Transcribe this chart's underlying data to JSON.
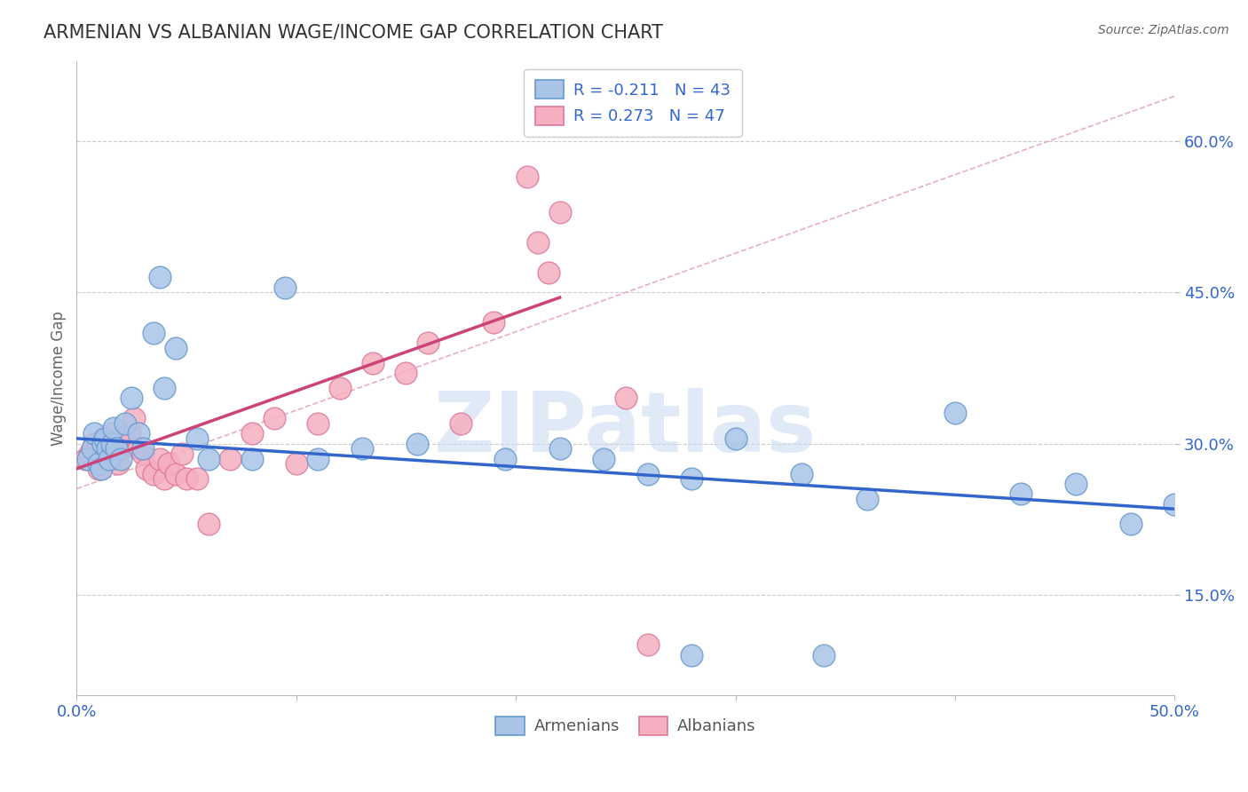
{
  "title": "ARMENIAN VS ALBANIAN WAGE/INCOME GAP CORRELATION CHART",
  "source": "Source: ZipAtlas.com",
  "ylabel": "Wage/Income Gap",
  "xlim": [
    0.0,
    0.5
  ],
  "ylim": [
    0.05,
    0.68
  ],
  "ytick_positions": [
    0.15,
    0.3,
    0.45,
    0.6
  ],
  "ytick_labels": [
    "15.0%",
    "30.0%",
    "45.0%",
    "60.0%"
  ],
  "grid_color": "#cccccc",
  "background_color": "#ffffff",
  "armenians_color": "#aac4e8",
  "albanians_color": "#f5afc0",
  "armenians_edge": "#6699cc",
  "albanians_edge": "#dd7799",
  "blue_line_color": "#3366cc",
  "pink_line_color": "#cc4477",
  "ref_line_color": "#cccccc",
  "watermark": "ZIPatlas",
  "watermark_color": "#c8d8f0",
  "armenians_x": [
    0.005,
    0.007,
    0.008,
    0.01,
    0.011,
    0.012,
    0.013,
    0.014,
    0.015,
    0.016,
    0.017,
    0.018,
    0.02,
    0.022,
    0.025,
    0.028,
    0.03,
    0.035,
    0.038,
    0.04,
    0.045,
    0.055,
    0.06,
    0.08,
    0.095,
    0.11,
    0.13,
    0.155,
    0.195,
    0.22,
    0.24,
    0.26,
    0.28,
    0.3,
    0.33,
    0.36,
    0.4,
    0.43,
    0.455,
    0.48,
    0.28,
    0.34,
    0.5
  ],
  "armenians_y": [
    0.285,
    0.295,
    0.31,
    0.28,
    0.275,
    0.3,
    0.305,
    0.295,
    0.285,
    0.3,
    0.315,
    0.295,
    0.285,
    0.32,
    0.345,
    0.31,
    0.295,
    0.41,
    0.465,
    0.355,
    0.395,
    0.305,
    0.285,
    0.285,
    0.455,
    0.285,
    0.295,
    0.3,
    0.285,
    0.295,
    0.285,
    0.27,
    0.265,
    0.305,
    0.27,
    0.245,
    0.33,
    0.25,
    0.26,
    0.22,
    0.09,
    0.09,
    0.24
  ],
  "albanians_x": [
    0.004,
    0.006,
    0.008,
    0.009,
    0.01,
    0.011,
    0.012,
    0.013,
    0.014,
    0.015,
    0.016,
    0.017,
    0.018,
    0.019,
    0.02,
    0.022,
    0.024,
    0.026,
    0.028,
    0.03,
    0.032,
    0.035,
    0.038,
    0.04,
    0.042,
    0.045,
    0.048,
    0.05,
    0.055,
    0.06,
    0.07,
    0.08,
    0.09,
    0.1,
    0.11,
    0.12,
    0.135,
    0.15,
    0.16,
    0.175,
    0.19,
    0.205,
    0.21,
    0.215,
    0.22,
    0.25,
    0.26
  ],
  "albanians_y": [
    0.285,
    0.29,
    0.3,
    0.295,
    0.275,
    0.29,
    0.305,
    0.285,
    0.3,
    0.295,
    0.31,
    0.285,
    0.295,
    0.28,
    0.295,
    0.3,
    0.31,
    0.325,
    0.295,
    0.29,
    0.275,
    0.27,
    0.285,
    0.265,
    0.28,
    0.27,
    0.29,
    0.265,
    0.265,
    0.22,
    0.285,
    0.31,
    0.325,
    0.28,
    0.32,
    0.355,
    0.38,
    0.37,
    0.4,
    0.32,
    0.42,
    0.565,
    0.5,
    0.47,
    0.53,
    0.345,
    0.1
  ],
  "blue_line_x": [
    0.0,
    0.5
  ],
  "blue_line_y": [
    0.305,
    0.235
  ],
  "pink_line_x": [
    0.0,
    0.22
  ],
  "pink_line_y": [
    0.275,
    0.445
  ]
}
